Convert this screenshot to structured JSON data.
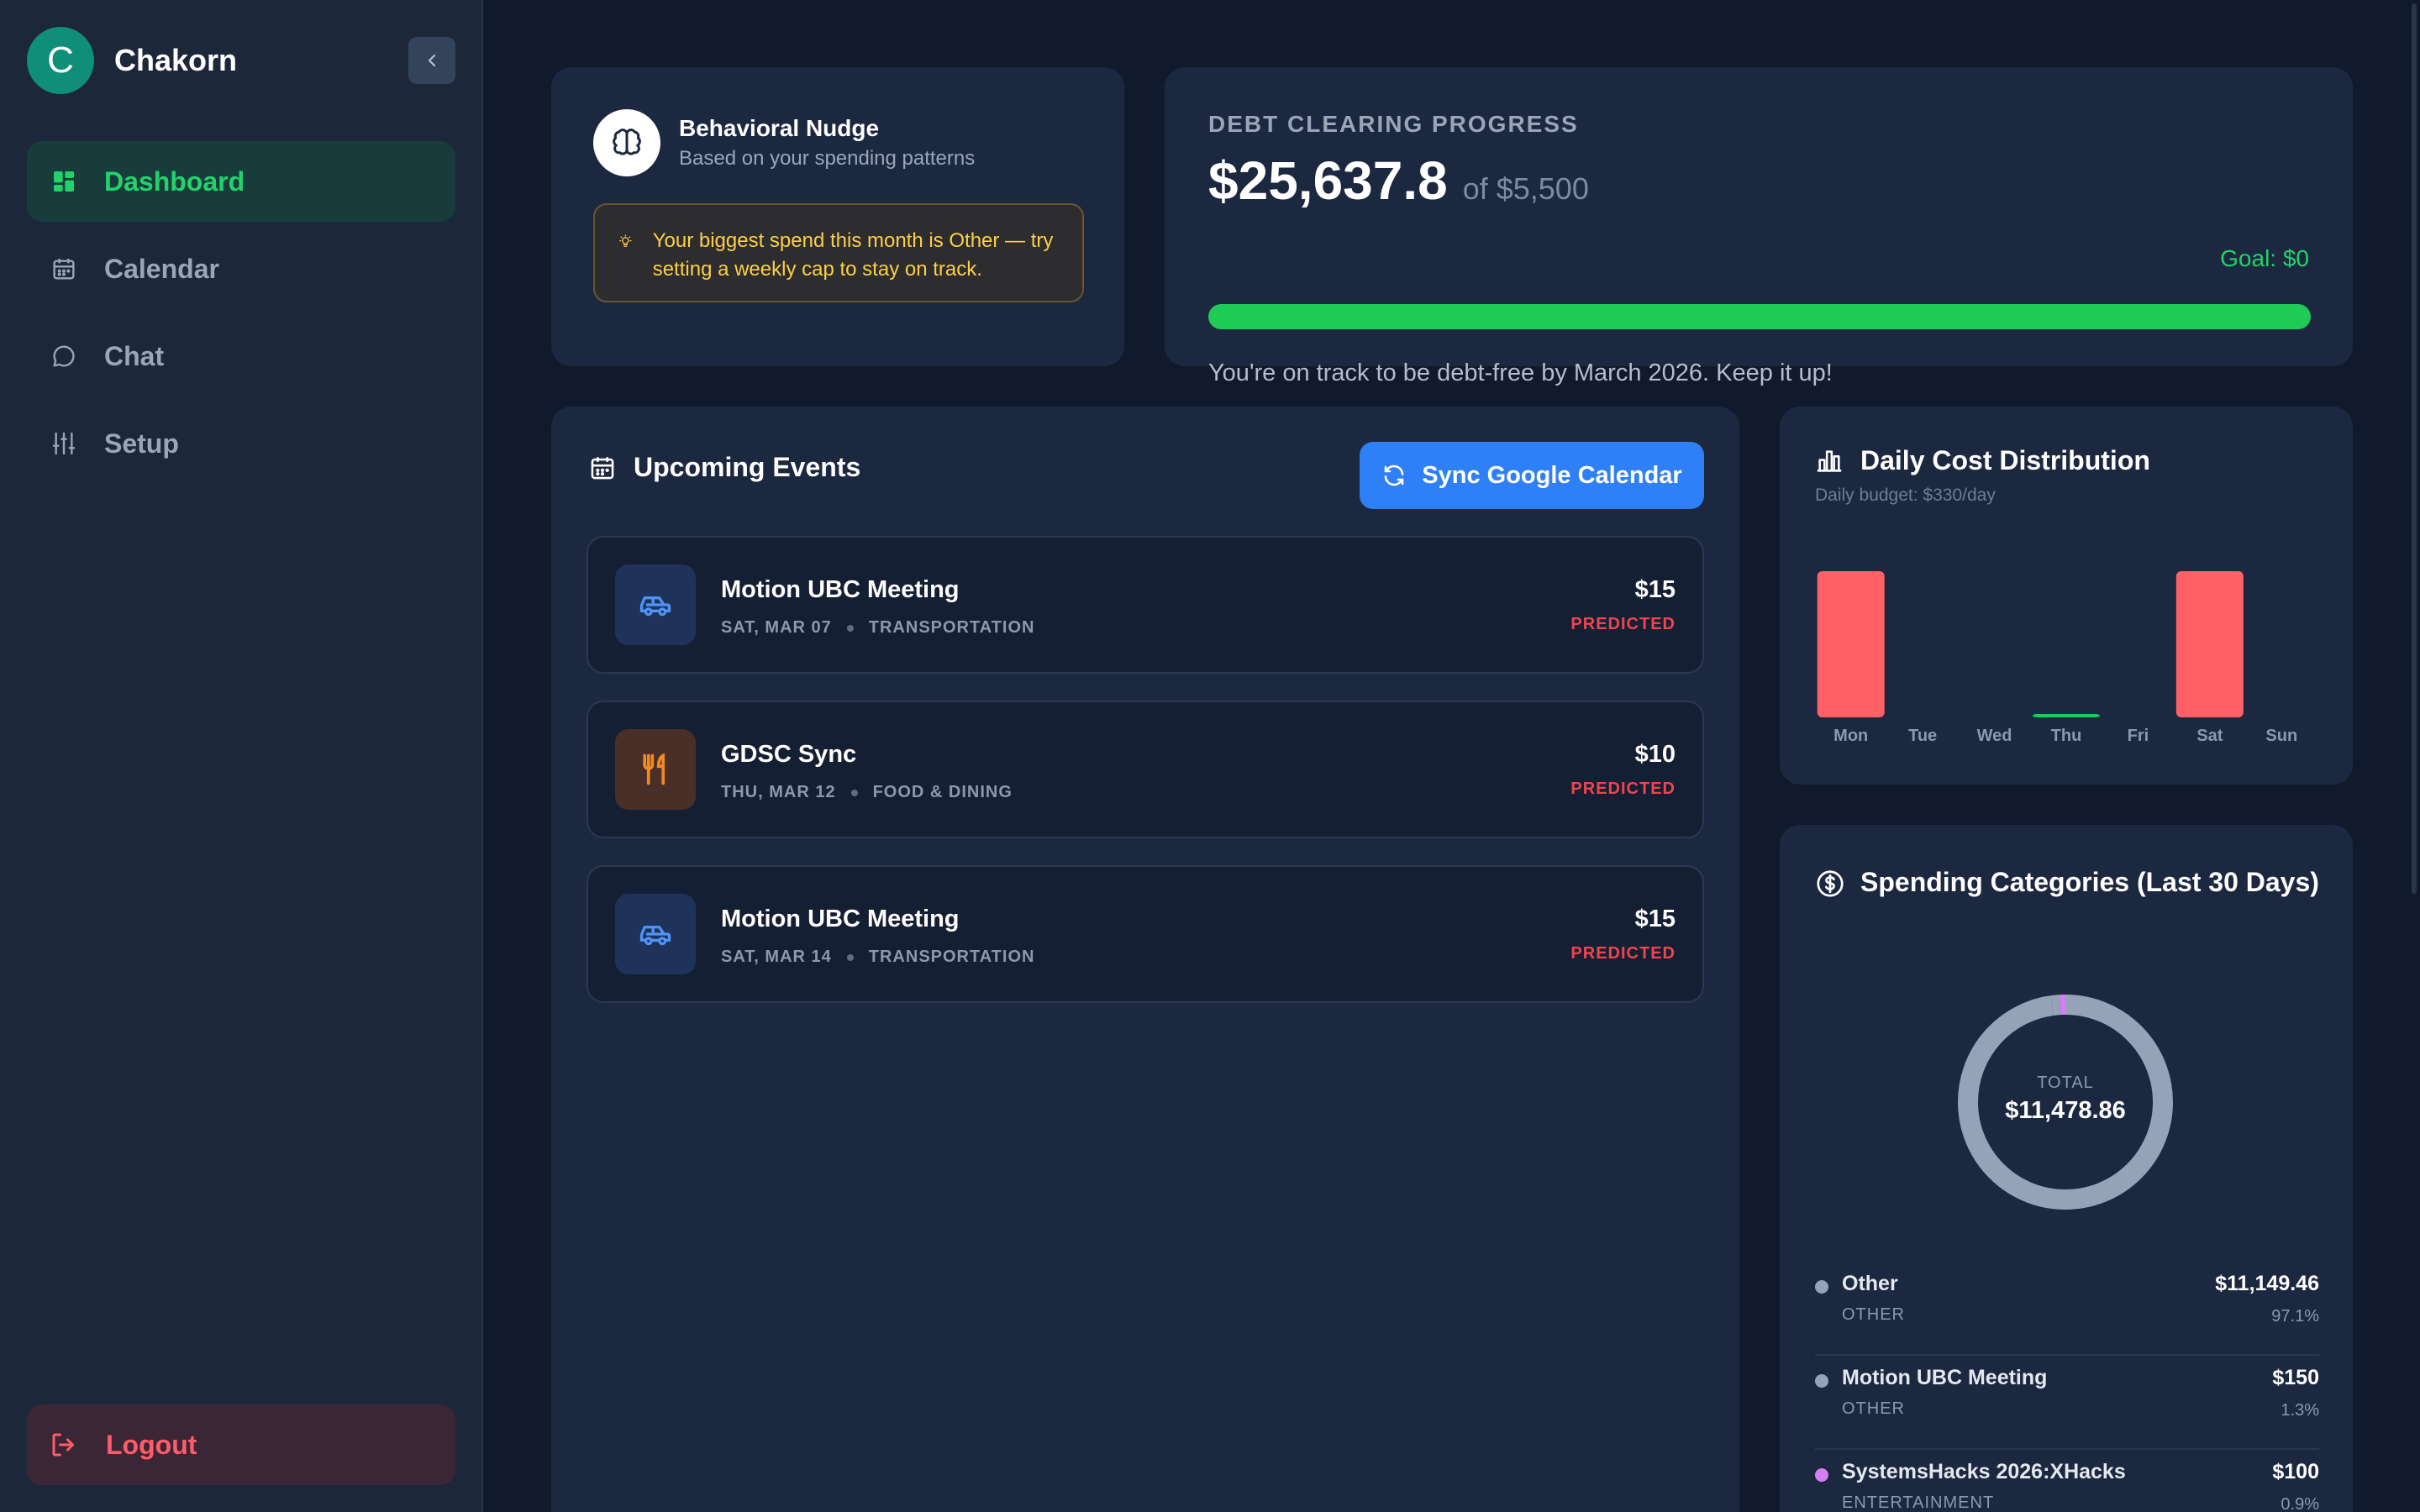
{
  "sidebar": {
    "brand": {
      "initial": "C",
      "name": "Chakorn"
    },
    "items": [
      {
        "label": "Dashboard",
        "icon": "dashboard-icon",
        "active": true
      },
      {
        "label": "Calendar",
        "icon": "calendar-icon",
        "active": false
      },
      {
        "label": "Chat",
        "icon": "chat-icon",
        "active": false
      },
      {
        "label": "Setup",
        "icon": "sliders-icon",
        "active": false
      }
    ],
    "logout_label": "Logout"
  },
  "nudge": {
    "title": "Behavioral Nudge",
    "subtitle": "Based on your spending patterns",
    "message": "Your biggest spend this month is Other — try setting a weekly cap to stay on track."
  },
  "debt": {
    "label": "DEBT CLEARING PROGRESS",
    "amount": "$25,637.8",
    "of_text": "of $5,500",
    "goal_text": "Goal: $0",
    "progress": 1.0,
    "note": "You're on track to be debt-free by March 2026. Keep it up!"
  },
  "events": {
    "title": "Upcoming Events",
    "sync_label": "Sync Google Calendar",
    "items": [
      {
        "name": "Motion UBC Meeting",
        "date": "SAT, MAR 07",
        "category": "TRANSPORTATION",
        "cost": "$15",
        "status": "PREDICTED",
        "icon": "car-icon"
      },
      {
        "name": "GDSC Sync",
        "date": "THU, MAR 12",
        "category": "FOOD & DINING",
        "cost": "$10",
        "status": "PREDICTED",
        "icon": "utensils-icon"
      },
      {
        "name": "Motion UBC Meeting",
        "date": "SAT, MAR 14",
        "category": "TRANSPORTATION",
        "cost": "$15",
        "status": "PREDICTED",
        "icon": "car-icon"
      }
    ]
  },
  "daily": {
    "title": "Daily Cost Distribution",
    "subtitle": "Daily budget: $330/day"
  },
  "categories": {
    "title": "Spending Categories (Last 30 Days)",
    "total_label": "TOTAL",
    "total": "$11,478.86",
    "items": [
      {
        "name": "Other",
        "type": "OTHER",
        "amount": "$11,149.46",
        "pct": "97.1%",
        "color": "#94a3b8"
      },
      {
        "name": "Motion UBC Meeting",
        "type": "OTHER",
        "amount": "$150",
        "pct": "1.3%",
        "color": "#94a3b8"
      },
      {
        "name": "SystemsHacks 2026:XHacks",
        "type": "ENTERTAINMENT",
        "amount": "$100",
        "pct": "0.9%",
        "color": "#d77ef5"
      }
    ]
  },
  "chart_data": [
    {
      "type": "bar",
      "title": "Daily Cost Distribution",
      "subtitle": "Daily budget: $330/day",
      "categories": [
        "Mon",
        "Tue",
        "Wed",
        "Thu",
        "Fri",
        "Sat",
        "Sun"
      ],
      "values": [
        330,
        0,
        0,
        3,
        0,
        330,
        0
      ],
      "colors": [
        "#ff6167",
        "#ff6167",
        "#ff6167",
        "#1fcb57",
        "#ff6167",
        "#ff6167",
        "#ff6167"
      ],
      "ylim": [
        0,
        330
      ],
      "grid": false
    },
    {
      "type": "pie",
      "title": "Spending Categories (Last 30 Days)",
      "labels": [
        "Other",
        "Motion UBC Meeting",
        "SystemsHacks 2026:XHacks"
      ],
      "values": [
        11149.46,
        150,
        100
      ],
      "colors": [
        "#94a3b8",
        "#94a3b8",
        "#d77ef5"
      ]
    }
  ]
}
